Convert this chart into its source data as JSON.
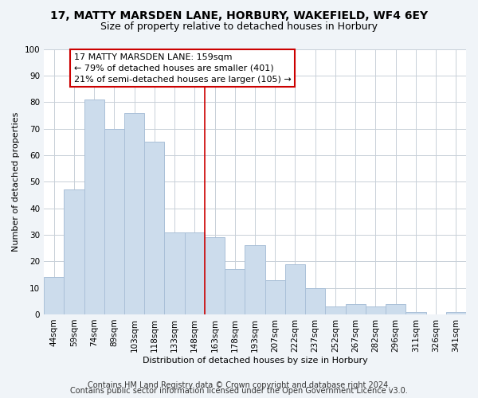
{
  "title": "17, MATTY MARSDEN LANE, HORBURY, WAKEFIELD, WF4 6EY",
  "subtitle": "Size of property relative to detached houses in Horbury",
  "xlabel": "Distribution of detached houses by size in Horbury",
  "ylabel": "Number of detached properties",
  "bar_labels": [
    "44sqm",
    "59sqm",
    "74sqm",
    "89sqm",
    "103sqm",
    "118sqm",
    "133sqm",
    "148sqm",
    "163sqm",
    "178sqm",
    "193sqm",
    "207sqm",
    "222sqm",
    "237sqm",
    "252sqm",
    "267sqm",
    "282sqm",
    "296sqm",
    "311sqm",
    "326sqm",
    "341sqm"
  ],
  "bar_values": [
    14,
    47,
    81,
    70,
    76,
    65,
    31,
    31,
    29,
    17,
    26,
    13,
    19,
    10,
    3,
    4,
    3,
    4,
    1,
    0,
    1
  ],
  "bar_color": "#ccdcec",
  "bar_edge_color": "#aac0d8",
  "highlight_bar_index": 8,
  "highlight_line_color": "#cc0000",
  "annotation_line1": "17 MATTY MARSDEN LANE: 159sqm",
  "annotation_line2": "← 79% of detached houses are smaller (401)",
  "annotation_line3": "21% of semi-detached houses are larger (105) →",
  "annotation_box_edge_color": "#cc0000",
  "ylim": [
    0,
    100
  ],
  "yticks": [
    0,
    10,
    20,
    30,
    40,
    50,
    60,
    70,
    80,
    90,
    100
  ],
  "footer_line1": "Contains HM Land Registry data © Crown copyright and database right 2024.",
  "footer_line2": "Contains public sector information licensed under the Open Government Licence v3.0.",
  "bg_color": "#f0f4f8",
  "plot_bg_color": "#ffffff",
  "grid_color": "#c8d0d8",
  "title_fontsize": 10,
  "subtitle_fontsize": 9,
  "annotation_fontsize": 8,
  "axis_label_fontsize": 8,
  "tick_fontsize": 7.5,
  "footer_fontsize": 7
}
